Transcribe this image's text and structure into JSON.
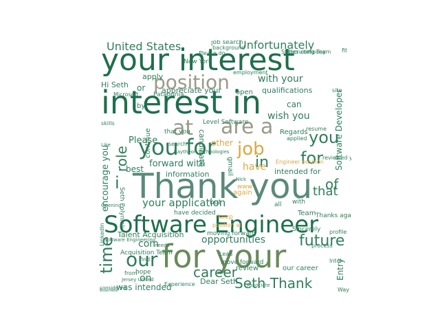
{
  "palette": {
    "dark_green": "#1f6e4e",
    "mid_green": "#2f7d5c",
    "teal": "#3f8a7a",
    "grey_green": "#5a8a6a",
    "olive": "#7a8a5a",
    "grey": "#9a9a8a",
    "tan": "#c8a050",
    "gold": "#d9a840"
  },
  "words": [
    {
      "text": "your interest",
      "color": "#1f6e4e"
    },
    {
      "text": "interest in",
      "color": "#1f6e4e"
    },
    {
      "text": "Thank you",
      "color": "#5a8a7a"
    },
    {
      "text": "Software Engineer",
      "color": "#1f6e4e"
    },
    {
      "text": "for your",
      "color": "#6a8a5a"
    },
    {
      "text": "position",
      "color": "#9a9a8a"
    },
    {
      "text": "you for",
      "color": "#2f7d5c"
    },
    {
      "text": "are a",
      "color": "#9a9a8a"
    },
    {
      "text": "job",
      "color": "#d9a840"
    },
    {
      "text": "United States",
      "color": "#2f7d5c"
    },
    {
      "text": "Unfortunately",
      "color": "#2f7d5c"
    },
    {
      "text": "at",
      "color": "#9a9a8a"
    },
    {
      "text": "you",
      "color": "#2f7d5c"
    },
    {
      "text": "in",
      "color": "#2f7d5c"
    },
    {
      "text": "for",
      "color": "#2f7d5c"
    },
    {
      "text": "our",
      "color": "#2f7d5c"
    },
    {
      "text": "career",
      "color": "#2f7d5c"
    },
    {
      "text": "Seth Thank",
      "color": "#2f7d5c"
    },
    {
      "text": "time",
      "color": "#2f7d5c"
    },
    {
      "text": "future",
      "color": "#2f7d5c"
    },
    {
      "text": "opportunities",
      "color": "#2f7d5c"
    },
    {
      "text": "your application",
      "color": "#2f7d5c"
    },
    {
      "text": "forward with",
      "color": "#2f7d5c"
    },
    {
      "text": "with your",
      "color": "#2f7d5c"
    },
    {
      "text": "appreciate your",
      "color": "#2f7d5c"
    },
    {
      "text": "wish you",
      "color": "#2f7d5c"
    },
    {
      "text": "intended for",
      "color": "#2f7d5c"
    },
    {
      "text": "encourage you",
      "color": "#2f7d5c"
    },
    {
      "text": "Software Developer",
      "color": "#2f7d5c"
    },
    {
      "text": "role",
      "color": "#2f7d5c"
    },
    {
      "text": "Please",
      "color": "#2f7d5c"
    },
    {
      "text": "have",
      "color": "#d9a840"
    },
    {
      "text": "other",
      "color": "#d9a840"
    },
    {
      "text": "that",
      "color": "#2f7d5c"
    },
    {
      "text": "of",
      "color": "#2f7d5c"
    },
    {
      "text": "i",
      "color": "#2f7d5c"
    },
    {
      "text": "com",
      "color": "#2f7d5c"
    },
    {
      "text": "on",
      "color": "#2f7d5c"
    },
    {
      "text": "New York",
      "color": "#2f7d5c"
    },
    {
      "text": "Hi Seth",
      "color": "#2f7d5c"
    },
    {
      "text": "Patagonia",
      "color": "#2f7d5c"
    },
    {
      "text": "job search",
      "color": "#2f7d5c"
    },
    {
      "text": "Dear Seth",
      "color": "#2f7d5c"
    },
    {
      "text": "review",
      "color": "#2f7d5c"
    },
    {
      "text": "our career",
      "color": "#2f7d5c"
    },
    {
      "text": "was intended",
      "color": "#2f7d5c"
    },
    {
      "text": "Talent Acquisition",
      "color": "#2f7d5c"
    },
    {
      "text": "Acquisition Team",
      "color": "#2f7d5c"
    },
    {
      "text": "have decided",
      "color": "#2f7d5c"
    },
    {
      "text": "information",
      "color": "#2f7d5c"
    },
    {
      "text": "best",
      "color": "#2f7d5c"
    },
    {
      "text": "Seth Polyniak",
      "color": "#2f7d5c"
    },
    {
      "text": "Level Software",
      "color": "#2f7d5c"
    },
    {
      "text": "Engineer position",
      "color": "#d9a840"
    },
    {
      "text": "candidate",
      "color": "#2f7d5c"
    },
    {
      "text": "continue",
      "color": "#2f7d5c"
    },
    {
      "text": "gmail",
      "color": "#2f7d5c"
    },
    {
      "text": "qualifications",
      "color": "#2f7d5c"
    },
    {
      "text": "open",
      "color": "#2f7d5c"
    },
    {
      "text": "Regards",
      "color": "#2f7d5c"
    },
    {
      "text": "Sincerely",
      "color": "#2f7d5c"
    },
    {
      "text": "Entry",
      "color": "#2f7d5c"
    },
    {
      "text": "moving forward",
      "color": "#2f7d5c"
    },
    {
      "text": "move forward",
      "color": "#2f7d5c"
    },
    {
      "text": "again",
      "color": "#d9a840"
    },
    {
      "text": "keep",
      "color": "#d9a840"
    },
    {
      "text": "Team",
      "color": "#2f7d5c"
    },
    {
      "text": "apply",
      "color": "#2f7d5c"
    },
    {
      "text": "or",
      "color": "#2f7d5c"
    },
    {
      "text": "Microsoft",
      "color": "#2f7d5c"
    },
    {
      "text": "hope",
      "color": "#2f7d5c"
    },
    {
      "text": "from",
      "color": "#2f7d5c"
    },
    {
      "text": "LinkedIn",
      "color": "#2f7d5c"
    },
    {
      "text": "all",
      "color": "#2f7d5c"
    },
    {
      "text": "with",
      "color": "#2f7d5c"
    },
    {
      "text": "Thanks again",
      "color": "#2f7d5c"
    },
    {
      "text": "profile",
      "color": "#2f7d5c"
    },
    {
      "text": "process",
      "color": "#2f7d5c"
    },
    {
      "text": "Intel",
      "color": "#2f7d5c"
    },
    {
      "text": "Experience",
      "color": "#2f7d5c"
    },
    {
      "text": "Raytheon Technologies",
      "color": "#2f7d5c"
    },
    {
      "text": "States company",
      "color": "#2f7d5c"
    },
    {
      "text": "Recruiting Team",
      "color": "#2f7d5c"
    },
    {
      "text": "Software Engineering",
      "color": "#2f7d5c"
    },
    {
      "text": "Opening",
      "color": "#2f7d5c"
    },
    {
      "text": "Jersey United",
      "color": "#2f7d5c"
    },
    {
      "text": "that you",
      "color": "#2f7d5c"
    },
    {
      "text": "search",
      "color": "#2f7d5c"
    },
    {
      "text": "Please do",
      "color": "#2f7d5c"
    },
    {
      "text": "background",
      "color": "#2f7d5c"
    },
    {
      "text": "employment",
      "color": "#2f7d5c"
    },
    {
      "text": "skills",
      "color": "#2f7d5c"
    },
    {
      "text": "considered",
      "color": "#2f7d5c"
    },
    {
      "text": "Associate",
      "color": "#2f7d5c"
    },
    {
      "text": "applied",
      "color": "#2f7d5c"
    },
    {
      "text": "Business",
      "color": "#2f7d5c"
    },
    {
      "text": "reviewed your",
      "color": "#2f7d5c"
    },
    {
      "text": "position at",
      "color": "#d9a840"
    },
    {
      "text": "but",
      "color": "#2f7d5c"
    },
    {
      "text": "www",
      "color": "#d9a840"
    },
    {
      "text": "can",
      "color": "#2f7d5c"
    },
    {
      "text": "site",
      "color": "#2f7d5c"
    },
    {
      "text": "resume",
      "color": "#2f7d5c"
    },
    {
      "text": "Way",
      "color": "#2f7d5c"
    },
    {
      "text": "Like",
      "color": "#2f7d5c"
    },
    {
      "text": "find",
      "color": "#2f7d5c"
    },
    {
      "text": "needs",
      "color": "#2f7d5c"
    },
    {
      "text": "Lead",
      "color": "#2f7d5c"
    },
    {
      "text": "Nick",
      "color": "#2f7d5c"
    },
    {
      "text": "fit",
      "color": "#2f7d5c"
    },
    {
      "text": "by",
      "color": "#2f7d5c"
    }
  ]
}
